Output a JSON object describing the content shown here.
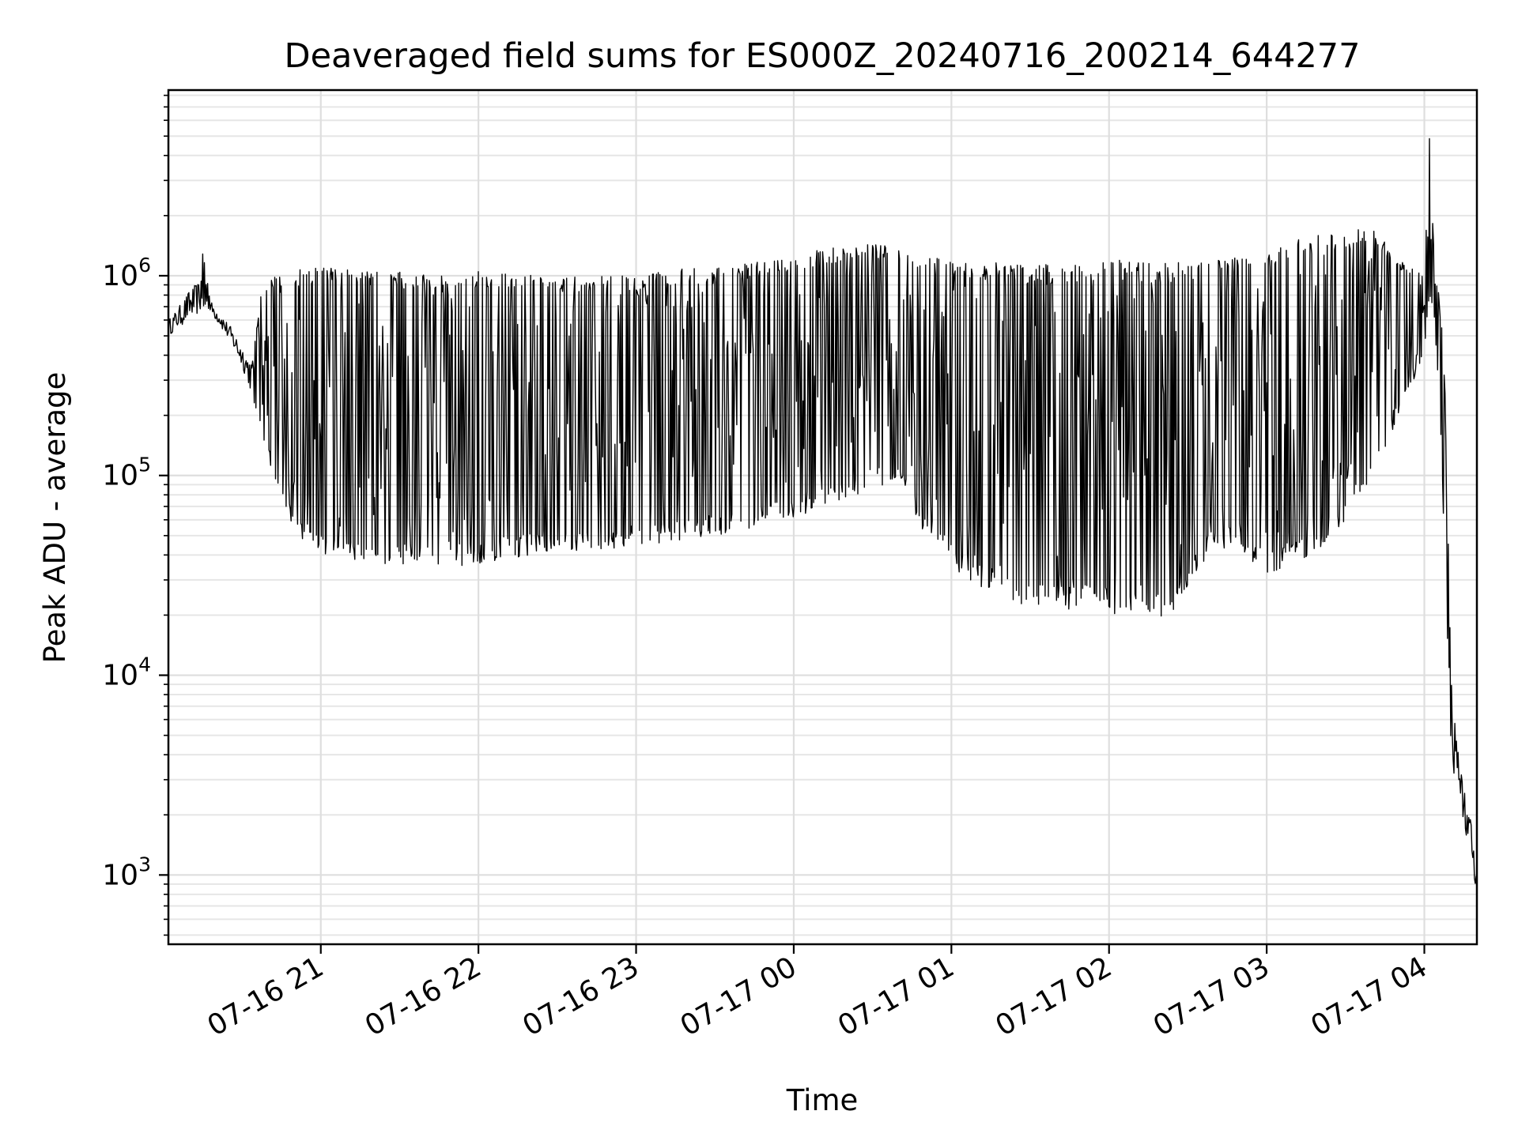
{
  "chart_data": {
    "type": "line",
    "title": "Deaveraged field sums for ES000Z_20240716_200214_644277",
    "xlabel": "Time",
    "ylabel": "Peak ADU - average",
    "y_scale": "log",
    "grid": true,
    "grid_minor": true,
    "xlim": [
      "2024-07-16 20:02",
      "2024-07-17 04:20"
    ],
    "ylim": [
      450,
      8500000
    ],
    "x_ticks": [
      "2024-07-16 21:00",
      "2024-07-16 22:00",
      "2024-07-16 23:00",
      "2024-07-17 00:00",
      "2024-07-17 01:00",
      "2024-07-17 02:00",
      "2024-07-17 03:00",
      "2024-07-17 04:00"
    ],
    "x_tick_labels": [
      "07-16 21",
      "07-16 22",
      "07-16 23",
      "07-17 00",
      "07-17 01",
      "07-17 02",
      "07-17 03",
      "07-17 04"
    ],
    "y_ticks": [
      1000,
      10000,
      100000,
      1000000
    ],
    "y_tick_labels": [
      {
        "base": "10",
        "exp": "3"
      },
      {
        "base": "10",
        "exp": "4"
      },
      {
        "base": "10",
        "exp": "5"
      },
      {
        "base": "10",
        "exp": "6"
      }
    ],
    "series": [
      {
        "color": "#000000",
        "envelope_note": "dense oscillating signal; upper and lower envelopes sampled",
        "x": [
          "2024-07-16 20:02",
          "2024-07-16 20:06",
          "2024-07-16 20:10",
          "2024-07-16 20:14",
          "2024-07-16 20:16",
          "2024-07-16 20:18",
          "2024-07-16 20:22",
          "2024-07-16 20:26",
          "2024-07-16 20:30",
          "2024-07-16 20:34",
          "2024-07-16 20:38",
          "2024-07-16 20:42",
          "2024-07-16 20:46",
          "2024-07-16 20:50",
          "2024-07-16 20:55",
          "2024-07-16 21:00",
          "2024-07-16 21:10",
          "2024-07-16 21:20",
          "2024-07-16 21:30",
          "2024-07-16 21:40",
          "2024-07-16 21:50",
          "2024-07-16 22:00",
          "2024-07-16 22:10",
          "2024-07-16 22:20",
          "2024-07-16 22:30",
          "2024-07-16 22:40",
          "2024-07-16 22:50",
          "2024-07-16 23:00",
          "2024-07-16 23:10",
          "2024-07-16 23:20",
          "2024-07-16 23:30",
          "2024-07-16 23:40",
          "2024-07-16 23:50",
          "2024-07-17 00:00",
          "2024-07-17 00:10",
          "2024-07-17 00:20",
          "2024-07-17 00:30",
          "2024-07-17 00:40",
          "2024-07-17 00:50",
          "2024-07-17 01:00",
          "2024-07-17 01:10",
          "2024-07-17 01:20",
          "2024-07-17 01:30",
          "2024-07-17 01:40",
          "2024-07-17 01:50",
          "2024-07-17 02:00",
          "2024-07-17 02:10",
          "2024-07-17 02:20",
          "2024-07-17 02:30",
          "2024-07-17 02:40",
          "2024-07-17 02:50",
          "2024-07-17 03:00",
          "2024-07-17 03:10",
          "2024-07-17 03:20",
          "2024-07-17 03:30",
          "2024-07-17 03:40",
          "2024-07-17 03:50",
          "2024-07-17 04:00",
          "2024-07-17 04:02",
          "2024-07-17 04:04",
          "2024-07-17 04:06",
          "2024-07-17 04:08",
          "2024-07-17 04:10",
          "2024-07-17 04:12",
          "2024-07-17 04:14",
          "2024-07-17 04:16",
          "2024-07-17 04:18",
          "2024-07-17 04:20"
        ],
        "upper": [
          600000,
          700000,
          850000,
          950000,
          1800000,
          750000,
          650000,
          550000,
          450000,
          380000,
          950000,
          1000000,
          1000000,
          1050000,
          1100000,
          1100000,
          1100000,
          1100000,
          1050000,
          1050000,
          1050000,
          1050000,
          1050000,
          1050000,
          1000000,
          1000000,
          1000000,
          1000000,
          1050000,
          1100000,
          1100000,
          1150000,
          1200000,
          1250000,
          1350000,
          1400000,
          1450000,
          1400000,
          1300000,
          1250000,
          1200000,
          1150000,
          1150000,
          1150000,
          1150000,
          1200000,
          1200000,
          1150000,
          1200000,
          1200000,
          1300000,
          1400000,
          1500000,
          1600000,
          1700000,
          1800000,
          1200000,
          1000000,
          5500000,
          950000,
          850000,
          250000,
          12000,
          5000,
          3300,
          2300,
          1800,
          900
        ],
        "lower": [
          500000,
          550000,
          600000,
          650000,
          700000,
          650000,
          550000,
          450000,
          350000,
          250000,
          150000,
          100000,
          70000,
          50000,
          42000,
          40000,
          38000,
          36000,
          35000,
          34000,
          35000,
          36000,
          38000,
          40000,
          42000,
          42000,
          43000,
          45000,
          46000,
          48000,
          50000,
          53000,
          58000,
          62000,
          68000,
          75000,
          85000,
          95000,
          50000,
          35000,
          28000,
          24000,
          22000,
          21000,
          20000,
          20000,
          20000,
          19000,
          24000,
          45000,
          40000,
          32000,
          35000,
          42000,
          60000,
          90000,
          200000,
          400000,
          800000,
          550000,
          200000,
          30000,
          5000,
          2500,
          1800,
          1500,
          1200,
          650
        ]
      }
    ]
  }
}
